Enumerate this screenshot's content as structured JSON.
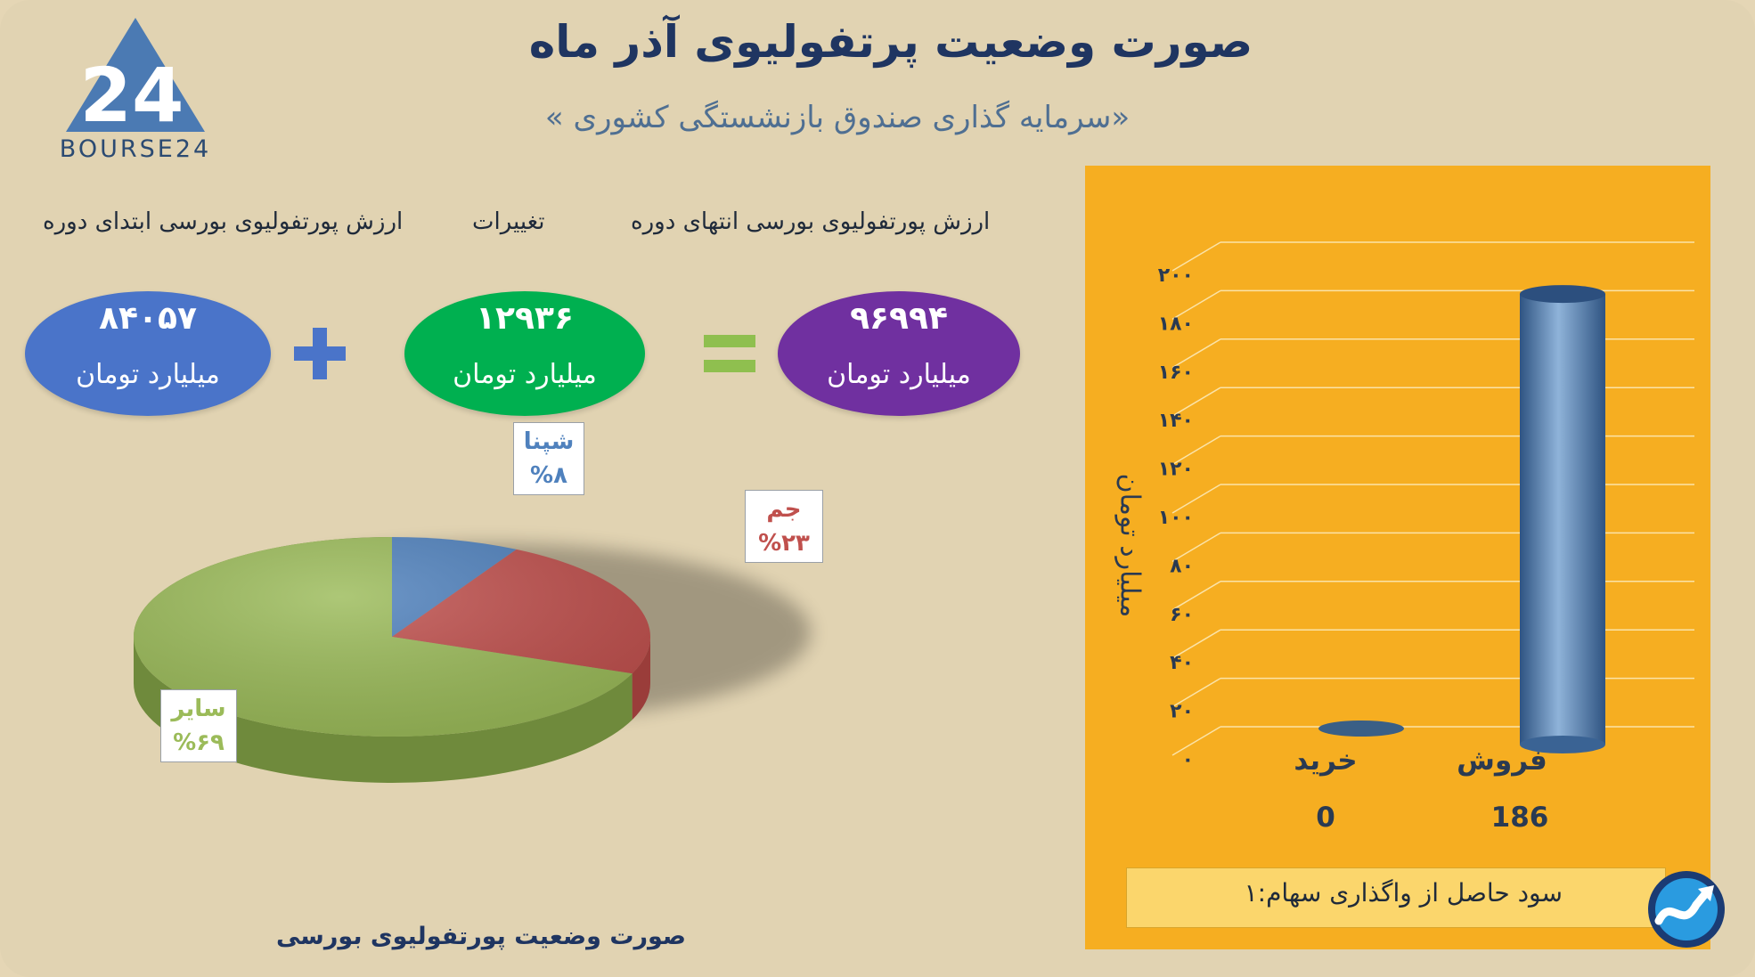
{
  "header": {
    "title": "صورت وضعیت پرتفولیوی آذر ماه",
    "subtitle": "«سرمایه گذاری صندوق بازنشستگی کشوری »"
  },
  "logo": {
    "text": "BOURSE24",
    "mark": "24"
  },
  "equation": {
    "start_label": "ارزش پورتفولیوی بورسی ابتدای دوره",
    "change_label": "تغییرات",
    "end_label": "ارزش پورتفولیوی بورسی انتهای دوره",
    "start_value": "۸۴۰۵۷",
    "change_value": "۱۲۹۳۶",
    "end_value": "۹۶۹۹۴",
    "unit": "میلیارد تومان",
    "plus_icon": "plus-icon",
    "equals_icon": "equals-icon",
    "colors": {
      "start": "#4a74c9",
      "change": "#00b050",
      "end": "#7030a0",
      "plus": "#4a74c9",
      "equals": "#8fbf4f"
    }
  },
  "pie_caption": "صورت وضعیت پورتفولیوی بورسی",
  "bar_caption": "سود حاصل از واگذاری سهام:۱",
  "chart_data": [
    {
      "type": "pie",
      "categories": [
        "شپنا",
        "جم",
        "سایر"
      ],
      "values": [
        8,
        23,
        69
      ],
      "labels": [
        "شپنا\n%۸",
        "جم\n%۲۳",
        "سایر\n%۶۹"
      ],
      "label_text": {
        "shepna": [
          "شپنا",
          "%۸"
        ],
        "jam": [
          "جم",
          "%۲۳"
        ],
        "saier": [
          "سایر",
          "%۶۹"
        ]
      },
      "colors": [
        "#4f81bd",
        "#c0504d",
        "#9bbb59"
      ],
      "style": "3d"
    },
    {
      "type": "bar",
      "categories": [
        "خرید",
        "فروش"
      ],
      "values": [
        0,
        186
      ],
      "value_labels": [
        "0",
        "186"
      ],
      "ylabel": "میلیارد تومان",
      "ylim": [
        0,
        200
      ],
      "yticks": [
        "۰",
        "۲۰",
        "۴۰",
        "۶۰",
        "۸۰",
        "۱۰۰",
        "۱۲۰",
        "۱۴۰",
        "۱۶۰",
        "۱۸۰",
        "۲۰۰"
      ],
      "grid": true,
      "style": "3d-cylinder",
      "bar_color": "#4a74a8",
      "background": "#f6ae21"
    }
  ]
}
